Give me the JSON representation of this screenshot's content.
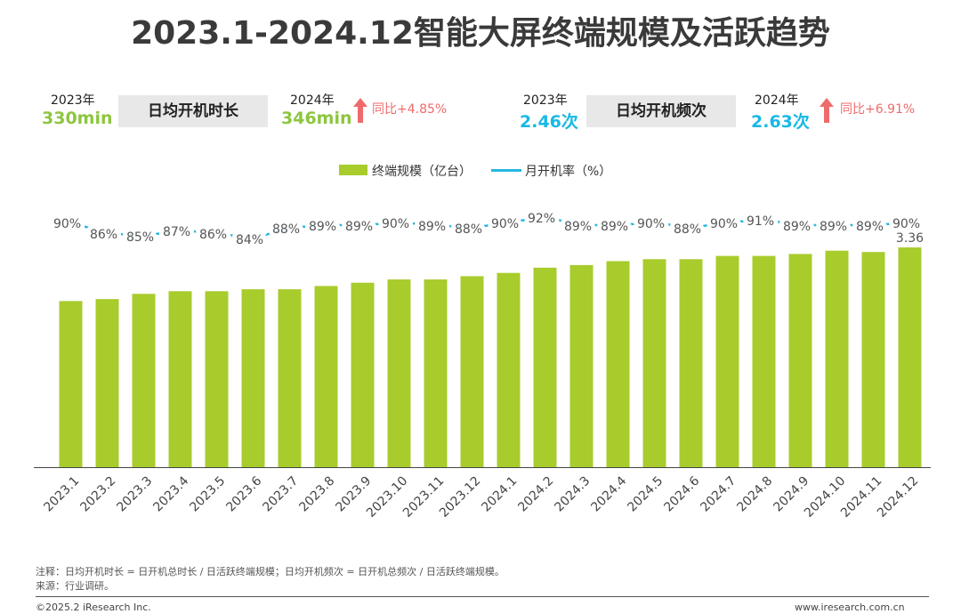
{
  "title": "2023.1-2024.12智能大屏终端规模及活跃趋势",
  "kpis": {
    "duration": {
      "label": "日均开机时长",
      "y2023_label": "2023年",
      "y2023_value": "330min",
      "y2024_label": "2024年",
      "y2024_value": "346min",
      "growth": "同比+4.85%"
    },
    "frequency": {
      "label": "日均开机频次",
      "y2023_label": "2023年",
      "y2023_value": "2.46次",
      "y2024_label": "2024年",
      "y2024_value": "2.63次",
      "growth": "同比+6.91%"
    }
  },
  "colors": {
    "bar": "#a8cc2c",
    "line": "#27b6e1",
    "kpi_green": "#8dc63f",
    "kpi_cyan": "#19b8e6",
    "growth_red": "#ee6b6b"
  },
  "chart_data": {
    "type": "bar",
    "categories": [
      "2023.1",
      "2023.2",
      "2023.3",
      "2023.4",
      "2023.5",
      "2023.6",
      "2023.7",
      "2023.8",
      "2023.9",
      "2023.10",
      "2023.11",
      "2023.12",
      "2024.1",
      "2024.2",
      "2024.3",
      "2024.4",
      "2024.5",
      "2024.6",
      "2024.7",
      "2024.8",
      "2024.9",
      "2024.10",
      "2024.11",
      "2024.12"
    ],
    "series": [
      {
        "name": "终端规模（亿台）",
        "type": "bar",
        "values": [
          2.54,
          2.57,
          2.65,
          2.69,
          2.69,
          2.72,
          2.72,
          2.77,
          2.82,
          2.87,
          2.87,
          2.92,
          2.97,
          3.05,
          3.09,
          3.15,
          3.18,
          3.18,
          3.23,
          3.23,
          3.26,
          3.31,
          3.29,
          3.36
        ],
        "data_labels": [
          "",
          "",
          "",
          "",
          "",
          "",
          "",
          "",
          "",
          "",
          "",
          "",
          "",
          "",
          "",
          "",
          "",
          "",
          "",
          "",
          "",
          "",
          "",
          "3.36"
        ]
      },
      {
        "name": "月开机率（%）",
        "type": "line",
        "values": [
          90,
          86,
          85,
          87,
          86,
          84,
          88,
          89,
          89,
          90,
          89,
          88,
          90,
          92,
          89,
          89,
          90,
          88,
          90,
          91,
          89,
          89,
          89,
          90
        ],
        "data_labels": [
          "90%",
          "86%",
          "85%",
          "87%",
          "86%",
          "84%",
          "88%",
          "89%",
          "89%",
          "90%",
          "89%",
          "88%",
          "90%",
          "92%",
          "89%",
          "89%",
          "90%",
          "88%",
          "90%",
          "91%",
          "89%",
          "89%",
          "89%",
          "90%"
        ]
      }
    ],
    "bar_ylim": [
      0,
      3.6
    ],
    "line_ylim": [
      80,
      95
    ],
    "legend": "top-center",
    "grid": false
  },
  "notes": {
    "note": "注释：日均开机时长 = 日开机总时长 / 日活跃终端规模；日均开机频次 = 日开机总频次 / 日活跃终端规模。",
    "source": "来源：行业调研。"
  },
  "footer": {
    "copyright": "©2025.2 iResearch Inc.",
    "url": "www.iresearch.com.cn"
  }
}
